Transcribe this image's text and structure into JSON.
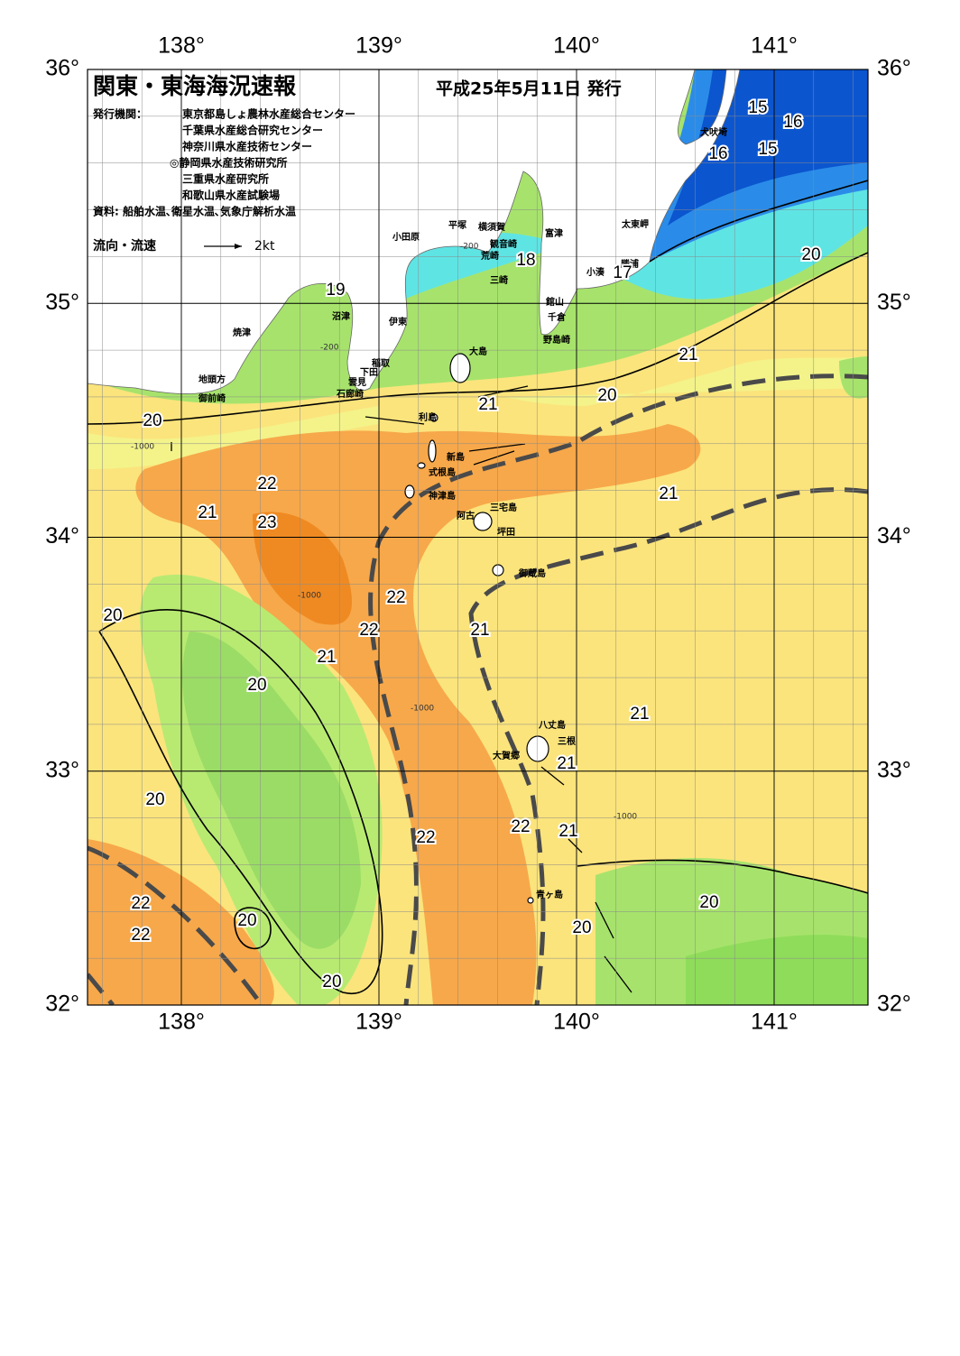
{
  "header": {
    "title": "関東・東海海況速報",
    "date": "平成25年5月11日 発行",
    "issuer_label": "発行機関：",
    "issuers": [
      "東京都島しょ農林水産総合センター",
      "千葉県水産総合研究センター",
      "神奈川県水産技術センター",
      "◎静岡県水産技術研究所",
      "三重県水産研究所",
      "和歌山県水産試験場"
    ],
    "source": "資料: 船舶水温､衛星水温､気象庁解析水温"
  },
  "legend": {
    "label": "流向・流速",
    "scale": "2kt"
  },
  "map": {
    "lon_ticks": [
      {
        "value": 138,
        "label": "138°"
      },
      {
        "value": 139,
        "label": "139°"
      },
      {
        "value": 140,
        "label": "140°"
      },
      {
        "value": 141,
        "label": "141°"
      }
    ],
    "lat_ticks": [
      {
        "value": 36,
        "label": "36°"
      },
      {
        "value": 35,
        "label": "35°"
      },
      {
        "value": 34,
        "label": "34°"
      },
      {
        "value": 33,
        "label": "33°"
      },
      {
        "value": 32,
        "label": "32°"
      }
    ]
  },
  "place_names": [
    "小田原",
    "平塚",
    "横須賀",
    "観音崎",
    "富津",
    "荒崎",
    "三崎",
    "太東岬",
    "勝浦",
    "小湊",
    "館山",
    "千倉",
    "野島崎",
    "大島",
    "沼津",
    "伊東",
    "稲取",
    "下田",
    "雲見",
    "石廊崎",
    "焼津",
    "地頭方",
    "御前崎",
    "犬吠埼",
    "利島",
    "新島",
    "式根島",
    "神津島",
    "三宅島",
    "阿古",
    "坪田",
    "御蔵島",
    "八丈島",
    "三根",
    "大賀郷",
    "青ヶ島"
  ],
  "isotherm_labels": [
    15,
    16,
    16,
    15,
    18,
    17,
    20,
    19,
    21,
    20,
    21,
    20,
    22,
    21,
    21,
    23,
    22,
    20,
    22,
    21,
    21,
    20,
    21,
    21,
    20,
    22,
    21,
    22,
    20,
    22,
    20,
    20,
    22,
    20
  ],
  "depth_labels": [
    -200,
    -200,
    -1000,
    -1000,
    -1000,
    -1000
  ]
}
